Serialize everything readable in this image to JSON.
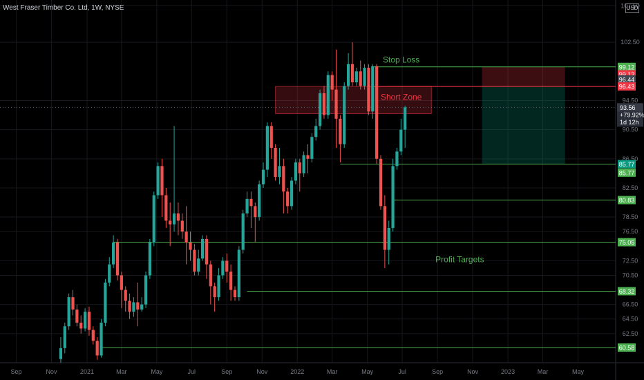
{
  "header": {
    "title": "West Fraser Timber Co. Ltd, 1W, NYSE",
    "currency": "USD"
  },
  "chart_data": {
    "type": "candlestick",
    "title": "West Fraser Timber Co. Ltd, 1W, NYSE",
    "ylim": [
      58.5,
      108.3
    ],
    "xlim": [
      -4,
      148
    ],
    "grid": true,
    "y_ticks": [
      "62.50",
      "64.50",
      "66.50",
      "70.50",
      "72.50",
      "76.50",
      "78.50",
      "82.50",
      "86.50",
      "90.50",
      "94.50",
      "102.50",
      "107.50"
    ],
    "y_tick_values": [
      62.5,
      64.5,
      66.5,
      70.5,
      72.5,
      76.5,
      78.5,
      82.5,
      86.5,
      90.5,
      94.5,
      102.5,
      107.5
    ],
    "x_ticks": [
      {
        "label": "Sep",
        "i": 0
      },
      {
        "label": "Nov",
        "i": 8.7
      },
      {
        "label": "2021",
        "i": 17.5
      },
      {
        "label": "Mar",
        "i": 26
      },
      {
        "label": "May",
        "i": 34.7
      },
      {
        "label": "Jul",
        "i": 43.3
      },
      {
        "label": "Sep",
        "i": 52
      },
      {
        "label": "Nov",
        "i": 60.7
      },
      {
        "label": "2022",
        "i": 69.4
      },
      {
        "label": "Mar",
        "i": 78
      },
      {
        "label": "May",
        "i": 86.7
      },
      {
        "label": "Jul",
        "i": 95.3
      },
      {
        "label": "Sep",
        "i": 104
      },
      {
        "label": "Nov",
        "i": 112.7
      },
      {
        "label": "2023",
        "i": 121.4
      },
      {
        "label": "Mar",
        "i": 130
      },
      {
        "label": "May",
        "i": 138.7
      }
    ],
    "candles": [
      [
        11,
        59,
        60.5,
        58.5,
        62
      ],
      [
        12,
        60.5,
        63.5,
        59.8,
        64
      ],
      [
        13,
        63.5,
        67.5,
        63,
        68
      ],
      [
        14,
        67.5,
        65.8,
        65,
        68.5
      ],
      [
        15,
        65.8,
        64,
        63.5,
        66.5
      ],
      [
        16,
        64,
        63.2,
        62.5,
        65
      ],
      [
        17,
        63.2,
        65.5,
        62.8,
        66
      ],
      [
        18,
        65.5,
        63,
        62.2,
        66.2
      ],
      [
        19,
        63,
        61.5,
        61,
        63.5
      ],
      [
        20,
        61.5,
        59.5,
        58.9,
        62
      ],
      [
        21,
        59.5,
        64,
        59.2,
        64.5
      ],
      [
        22,
        64,
        69.5,
        63.5,
        70
      ],
      [
        23,
        69.5,
        72,
        69,
        73
      ],
      [
        24,
        72,
        75,
        71.5,
        76
      ],
      [
        25,
        75,
        70.5,
        69.8,
        75.5
      ],
      [
        26,
        70.5,
        68.5,
        66,
        71
      ],
      [
        27,
        68.5,
        67,
        65.5,
        69
      ],
      [
        28,
        67,
        65.5,
        64.5,
        68
      ],
      [
        29,
        65.5,
        66.8,
        64.8,
        67.5
      ],
      [
        30,
        66.8,
        65.8,
        63.5,
        69.5
      ],
      [
        31,
        65.8,
        66.5,
        65.5,
        67.5
      ],
      [
        32,
        66.5,
        70.5,
        66,
        71
      ],
      [
        33,
        70.5,
        75,
        70,
        75.5
      ],
      [
        34,
        75,
        81.5,
        74.5,
        82
      ],
      [
        35,
        81.5,
        85.5,
        81,
        86
      ],
      [
        36,
        85.5,
        81.5,
        78.5,
        86.5
      ],
      [
        37,
        81.5,
        78,
        77,
        82.5
      ],
      [
        38,
        78,
        77.5,
        74.5,
        80.5
      ],
      [
        39,
        77.5,
        79,
        76.5,
        91
      ],
      [
        40,
        79,
        78,
        76,
        80.5
      ],
      [
        41,
        78,
        76.5,
        75.5,
        79
      ],
      [
        42,
        76.5,
        75,
        72,
        80
      ],
      [
        43,
        75,
        74,
        72.5,
        76.5
      ],
      [
        44,
        74,
        71,
        70.5,
        74.8
      ],
      [
        45,
        71,
        72.8,
        70.5,
        74
      ],
      [
        46,
        72.8,
        75.5,
        72.5,
        76
      ],
      [
        47,
        75.5,
        72,
        70,
        76
      ],
      [
        48,
        72,
        69,
        66.5,
        72.5
      ],
      [
        49,
        69,
        67.5,
        65.5,
        69.5
      ],
      [
        50,
        67.5,
        70.5,
        67,
        71.5
      ],
      [
        51,
        70.5,
        72.5,
        70,
        73
      ],
      [
        52,
        72.5,
        71,
        69.5,
        73.5
      ],
      [
        53,
        71,
        68.5,
        67,
        72
      ],
      [
        54,
        68.5,
        67.5,
        67,
        69
      ],
      [
        55,
        67.5,
        74,
        67,
        74.5
      ],
      [
        56,
        74,
        79,
        73.5,
        79.5
      ],
      [
        57,
        79,
        81,
        78.5,
        82
      ],
      [
        58,
        81,
        80,
        77,
        82
      ],
      [
        59,
        80,
        78.5,
        75,
        80.5
      ],
      [
        60,
        78.5,
        83,
        78,
        83.5
      ],
      [
        61,
        83,
        85,
        82.5,
        86
      ],
      [
        62,
        85,
        91,
        84,
        91.5
      ],
      [
        63,
        91,
        88,
        86.5,
        91.5
      ],
      [
        64,
        88,
        84,
        83.5,
        88.5
      ],
      [
        65,
        84,
        85.5,
        83,
        88
      ],
      [
        66,
        85.5,
        82,
        79,
        86.5
      ],
      [
        67,
        82,
        80,
        79,
        82.5
      ],
      [
        68,
        80,
        83.5,
        79.5,
        84
      ],
      [
        69,
        83.5,
        86,
        83,
        86.5
      ],
      [
        70,
        86,
        84.5,
        82,
        86.5
      ],
      [
        71,
        84.5,
        87,
        84,
        87.5
      ],
      [
        72,
        87,
        86.5,
        84.5,
        88.5
      ],
      [
        73,
        86.5,
        89.5,
        86,
        90
      ],
      [
        74,
        89.5,
        91,
        89,
        92
      ],
      [
        75,
        91,
        95.5,
        90.5,
        96
      ],
      [
        76,
        95.5,
        92.5,
        92,
        96.5
      ],
      [
        77,
        92.5,
        98,
        92,
        98.5
      ],
      [
        78,
        98,
        96,
        94.5,
        98.5
      ],
      [
        79,
        96,
        92,
        88,
        101.5
      ],
      [
        80,
        92,
        88.5,
        86,
        92.5
      ],
      [
        81,
        88.5,
        96.5,
        88,
        97
      ],
      [
        82,
        96.5,
        99.5,
        96,
        101
      ],
      [
        83,
        99.5,
        97,
        96.5,
        102.5
      ],
      [
        84,
        97,
        98.5,
        96.5,
        99
      ],
      [
        85,
        98.5,
        96.5,
        96,
        100
      ],
      [
        86,
        96.5,
        99,
        96,
        99.5
      ],
      [
        87,
        99,
        93,
        92.5,
        99.5
      ],
      [
        88,
        93,
        99.2,
        92,
        99.5
      ],
      [
        89,
        99.2,
        86.5,
        85.8,
        99.5
      ],
      [
        90,
        86.5,
        80,
        79.5,
        87
      ],
      [
        91,
        80,
        74,
        71.5,
        81.5
      ],
      [
        92,
        74,
        77,
        72,
        78
      ],
      [
        93,
        77,
        85.5,
        76.5,
        86.5
      ],
      [
        94,
        85.5,
        87.5,
        85,
        88
      ],
      [
        95,
        87.5,
        90.5,
        87,
        92
      ],
      [
        96,
        90.5,
        93.56,
        88,
        93.8
      ]
    ],
    "levels": [
      {
        "label": "99.12",
        "value": 99.12,
        "color": "#4caf50",
        "x_start": 88
      },
      {
        "label": "96.43",
        "value": 96.43,
        "color": "#f23645",
        "x_start": 88
      },
      {
        "label": "85.77",
        "value": 85.77,
        "color": "#4caf50",
        "x_start": 80
      },
      {
        "label": "80.83",
        "value": 80.83,
        "color": "#4caf50",
        "x_start": 93
      },
      {
        "label": "75.05",
        "value": 75.05,
        "color": "#4caf50",
        "x_start": 24
      },
      {
        "label": "68.32",
        "value": 68.32,
        "color": "#4caf50",
        "x_start": 57
      },
      {
        "label": "60.58",
        "value": 60.58,
        "color": "#4caf50",
        "x_start": 21
      }
    ],
    "short_zone": {
      "label": "Short Zone",
      "x0": 64,
      "x1": 102.5,
      "y_top": 96.43,
      "y_bottom": 92.7
    },
    "position_box": {
      "x0": 115,
      "x1": 135.5,
      "stop": 99.12,
      "entry": 96.43,
      "target": 85.77
    },
    "annotations": [
      {
        "text": "Stop Loss",
        "i": 90.5,
        "y": 99.7,
        "color": "#4caf50"
      },
      {
        "text": "Short Zone",
        "i": 90,
        "y": 94.6,
        "color": "#f23645"
      },
      {
        "text": "Profit Targets",
        "i": 103.5,
        "y": 72.3,
        "color": "#4caf50"
      }
    ],
    "axis_labels": [
      {
        "text": "99.12",
        "y": 99.12,
        "color": "#4caf50"
      },
      {
        "text": "99.12",
        "y": 98.1,
        "color": "#f23645"
      },
      {
        "text": "96.44",
        "y": 97.4,
        "color": "#434651"
      },
      {
        "text": "96.43",
        "y": 96.43,
        "color": "#f23645"
      },
      {
        "text": "85.77",
        "y": 85.77,
        "color": "#089981"
      },
      {
        "text": "85.77",
        "y": 84.6,
        "color": "#4caf50"
      },
      {
        "text": "80.83",
        "y": 80.83,
        "color": "#4caf50"
      },
      {
        "text": "75.05",
        "y": 75.05,
        "color": "#4caf50"
      },
      {
        "text": "68.32",
        "y": 68.32,
        "color": "#4caf50"
      },
      {
        "text": "60.58",
        "y": 60.58,
        "color": "#4caf50"
      }
    ],
    "current_price": {
      "price": "93.56",
      "change": "+79.92%",
      "countdown": "1d 12h",
      "value": 93.56
    },
    "colors": {
      "up": "#26a69a",
      "down": "#ef5350",
      "grid": "#16181d",
      "text": "#d1d4dc",
      "axis": "#787b86"
    }
  }
}
